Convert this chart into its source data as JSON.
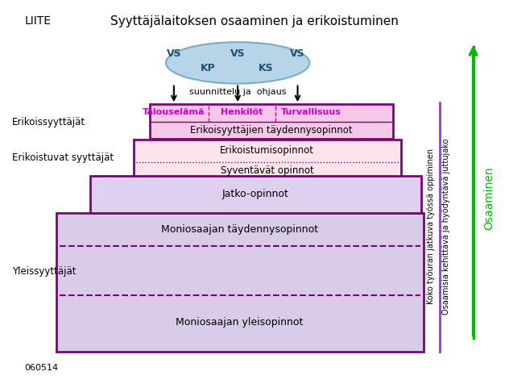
{
  "title": "Syyttäjälaitoksen osaaminen ja erikoistuminen",
  "liite_text": "LIITE",
  "footer_text": "060514",
  "ellipse_color": "#b8d4e8",
  "ellipse_border": "#7aacc8",
  "ellipse_text_color": "#1a5276",
  "arrow_text": "suunnittelu ja  ohjaus",
  "box1_fill": "#f5c8e8",
  "box1_border": "#800080",
  "box1_specialty_labels": [
    "Talouselämä",
    "Henkilöt",
    "Turvallisuus"
  ],
  "box1_specialty_color": "#cc00cc",
  "box1_text": "Erikoisyyttäjien täydennysopinnot",
  "box2_fill": "#fce4ec",
  "box2_border": "#800080",
  "box2_text1": "Erikoistumisopinnot",
  "box2_text2": "Syventävät opinnot",
  "box_mid_fill": "#e0d0f0",
  "box_mid_border": "#800080",
  "box_mid_text": "Jatko-opinnot",
  "box_large_fill": "#d8cce8",
  "box_large_border": "#800080",
  "box_large_text1": "Moniosaajan täydennysopinnot",
  "box_large_text2": "Moniosaajan yleisopinnot",
  "left_label1": "Erikoissyyttäjät",
  "left_label2": "Erikoistuvat syyttäjät",
  "left_label3": "Yleissyyttäjät",
  "right_text1": "Koko työuran jatkuva työssä oppiminen",
  "right_text2": "Osaamisia kehittävä ja hyödyntävä juttujako",
  "right_text3": "Osaaminen",
  "right_text3_color": "#00bb00",
  "right_line_color": "#9b30ff",
  "right_arrow_color": "#00bb00",
  "dashed_line_color": "#800080",
  "dotted_line_color": "#800080",
  "bg_color": "#ffffff"
}
